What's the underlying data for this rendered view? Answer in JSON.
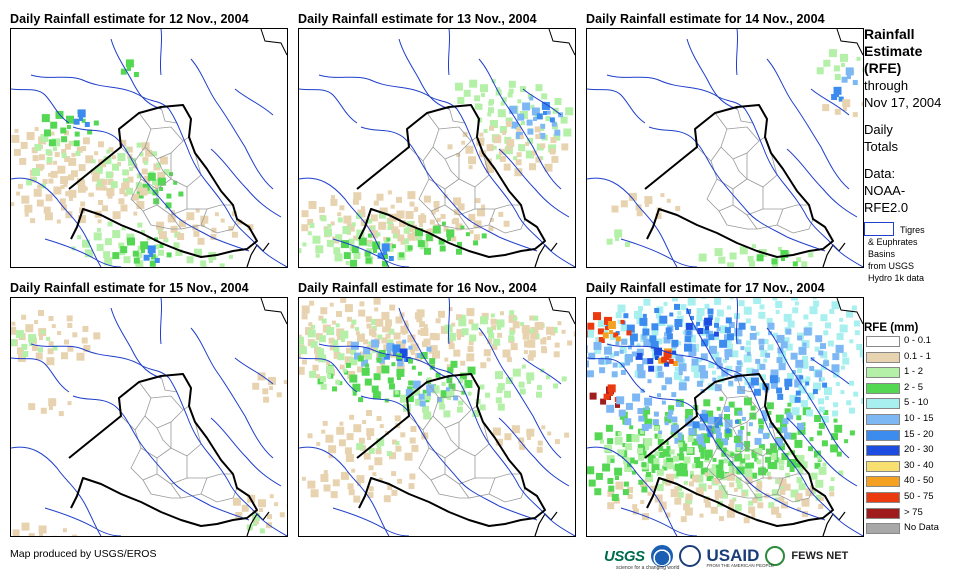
{
  "panels": [
    {
      "title": "Daily Rainfall estimate for 12 Nov., 2004",
      "date": "12 Nov., 2004"
    },
    {
      "title": "Daily Rainfall estimate for 13 Nov., 2004",
      "date": "13 Nov., 2004"
    },
    {
      "title": "Daily Rainfall estimate for 14 Nov., 2004",
      "date": "14 Nov., 2004"
    },
    {
      "title": "Daily Rainfall estimate for 15 Nov., 2004",
      "date": "15 Nov., 2004"
    },
    {
      "title": "Daily Rainfall estimate for 16 Nov., 2004",
      "date": "16 Nov., 2004"
    },
    {
      "title": "Daily Rainfall estimate for 17 Nov., 2004",
      "date": "17 Nov., 2004"
    }
  ],
  "sidebar": {
    "title_line1": "Rainfall",
    "title_line2": "Estimate",
    "title_line3": "(RFE)",
    "through": "through",
    "through_date": "Nov 17, 2004",
    "totals_line1": "Daily",
    "totals_line2": "Totals",
    "data_label": "Data:",
    "data_source_line1": "NOAA-",
    "data_source_line2": "RFE2.0"
  },
  "basin_legend": {
    "line1": "Tigres",
    "line2": "& Euphrates",
    "line3": "Basins",
    "line4": "from USGS",
    "line5": "Hydro 1k data",
    "color": "#1f3fcc"
  },
  "rfe_legend": {
    "title": "RFE (mm)",
    "classes": [
      {
        "label": "0 - 0.1",
        "color": "#ffffff"
      },
      {
        "label": "0.1 - 1",
        "color": "#e8d3b0"
      },
      {
        "label": "1 - 2",
        "color": "#b4f0a8"
      },
      {
        "label": "2 - 5",
        "color": "#54d854"
      },
      {
        "label": "5 - 10",
        "color": "#a8f0f0"
      },
      {
        "label": "10 - 15",
        "color": "#7eb8f4"
      },
      {
        "label": "15 - 20",
        "color": "#3c8cf0"
      },
      {
        "label": "20 - 30",
        "color": "#1c4ce0"
      },
      {
        "label": "30 - 40",
        "color": "#f8e070"
      },
      {
        "label": "40 - 50",
        "color": "#f4a020"
      },
      {
        "label": "50 - 75",
        "color": "#ec3a10"
      },
      {
        "label": "> 75",
        "color": "#a01c1c"
      },
      {
        "label": "No Data",
        "color": "#a8a8a8"
      }
    ]
  },
  "footer": {
    "credit": "Map produced by USGS/EROS",
    "logos": {
      "usgs": "USGS",
      "usgs_tagline": "science for a changing world",
      "usaid": "USAID",
      "usaid_tagline": "FROM THE AMERICAN PEOPLE",
      "fews": "FEWS NET"
    }
  },
  "colors": {
    "river": "#1f3fcc",
    "iraq_border": "#000000",
    "province_border": "#9a9a9a"
  }
}
